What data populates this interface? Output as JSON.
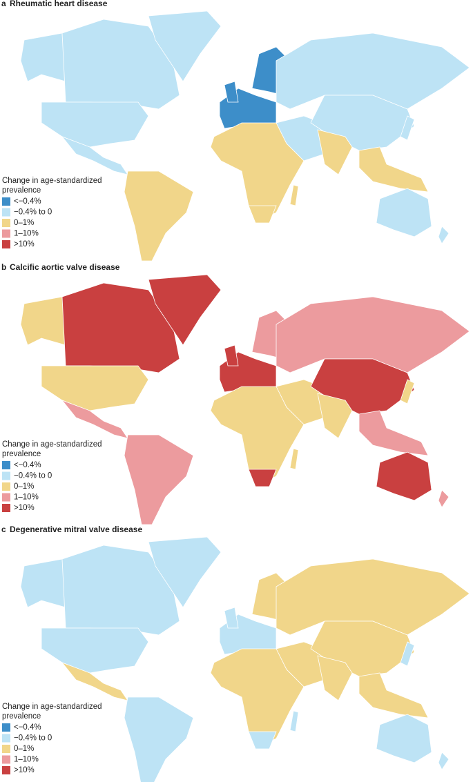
{
  "panels": [
    {
      "letter": "a",
      "title": "Rheumatic heart disease",
      "legend_title": "Change in age-standardized",
      "legend_subtitle": "prevalence",
      "legend": [
        {
          "label": "<−0.4%",
          "color": "#3d8ec9"
        },
        {
          "label": "−0.4% to 0",
          "color": "#bde3f5"
        },
        {
          "label": "0–1%",
          "color": "#f1d68a"
        },
        {
          "label": "1–10%",
          "color": "#ec9b9e"
        },
        {
          "label": ">10%",
          "color": "#c94040"
        }
      ]
    },
    {
      "letter": "b",
      "title": "Calcific aortic valve disease",
      "legend_title": "Change in age-standardized",
      "legend_subtitle": "prevalence",
      "legend": [
        {
          "label": "<−0.4%",
          "color": "#3d8ec9"
        },
        {
          "label": "−0.4% to 0",
          "color": "#bde3f5"
        },
        {
          "label": "0–1%",
          "color": "#f1d68a"
        },
        {
          "label": "1–10%",
          "color": "#ec9b9e"
        },
        {
          "label": ">10%",
          "color": "#c94040"
        }
      ]
    },
    {
      "letter": "c",
      "title": "Degenerative mitral valve disease",
      "legend_title": "Change in age-standardized",
      "legend_subtitle": "prevalence",
      "legend": [
        {
          "label": "<−0.4%",
          "color": "#3d8ec9"
        },
        {
          "label": "−0.4% to 0",
          "color": "#bde3f5"
        },
        {
          "label": "0–1%",
          "color": "#f1d68a"
        },
        {
          "label": "1–10%",
          "color": "#ec9b9e"
        },
        {
          "label": ">10%",
          "color": "#c94040"
        }
      ]
    }
  ]
}
